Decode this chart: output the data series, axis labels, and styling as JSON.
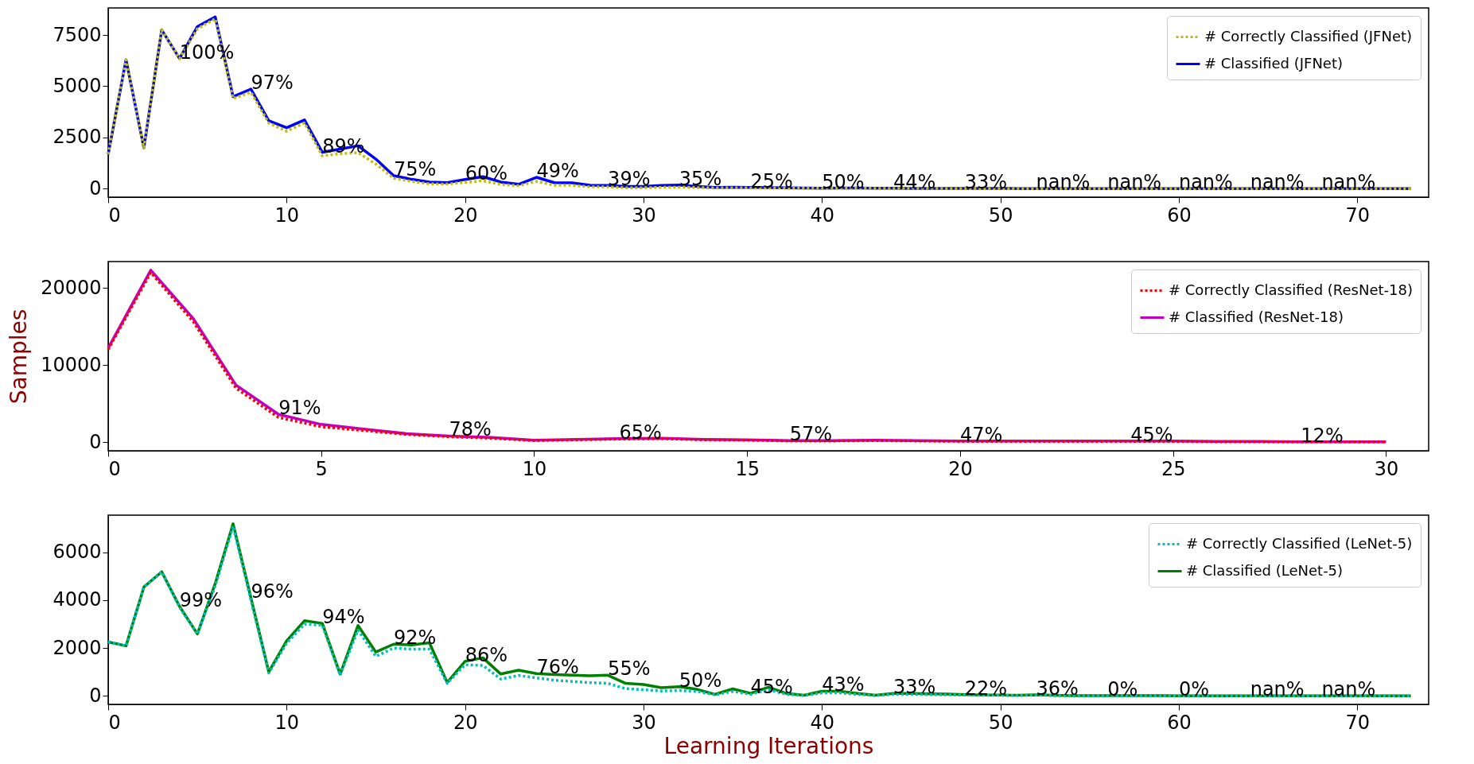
{
  "chart_data": [
    {
      "type": "line",
      "x": [
        0,
        1,
        2,
        3,
        4,
        5,
        6,
        7,
        8,
        9,
        10,
        11,
        12,
        13,
        14,
        15,
        16,
        17,
        18,
        19,
        20,
        21,
        22,
        23,
        24,
        25,
        26,
        27,
        28,
        29,
        30,
        31,
        32,
        33,
        34,
        35,
        36,
        37,
        38,
        39,
        40,
        41,
        42,
        43,
        44,
        45,
        46,
        47,
        48,
        49,
        50,
        51,
        52,
        53,
        54,
        55,
        56,
        57,
        58,
        59,
        60,
        61,
        62,
        63,
        64,
        65,
        66,
        67,
        68,
        69,
        70,
        71,
        72,
        73
      ],
      "series": [
        {
          "name": "# Correctly Classified (JFNet)",
          "color": "#bfbf00",
          "line_style": "dotted",
          "values": [
            1670,
            6290,
            1990,
            7750,
            6350,
            7800,
            8300,
            4400,
            4700,
            3200,
            2800,
            3200,
            1600,
            1700,
            1750,
            1200,
            500,
            350,
            230,
            220,
            300,
            380,
            200,
            140,
            350,
            160,
            160,
            80,
            80,
            40,
            40,
            60,
            70,
            50,
            30,
            40,
            30,
            30,
            20,
            20,
            10,
            20,
            20,
            10,
            10,
            10,
            10,
            0,
            0,
            0,
            0,
            0,
            0,
            0,
            0,
            0,
            0,
            0,
            0,
            0,
            0,
            0,
            0,
            0,
            0,
            0,
            0,
            0,
            0,
            0,
            0,
            0,
            0,
            0
          ]
        },
        {
          "name": "# Classified (JFNet)",
          "color": "#0000ff",
          "line_style": "solid",
          "values": [
            1670,
            6290,
            1990,
            7750,
            6350,
            7910,
            8380,
            4490,
            4860,
            3310,
            2970,
            3350,
            1770,
            1930,
            2090,
            1440,
            630,
            450,
            320,
            290,
            440,
            580,
            320,
            210,
            550,
            290,
            280,
            160,
            150,
            100,
            100,
            150,
            170,
            100,
            60,
            70,
            60,
            50,
            40,
            30,
            20,
            30,
            30,
            20,
            20,
            10,
            10,
            10,
            10,
            10,
            10,
            0,
            0,
            0,
            0,
            0,
            0,
            0,
            0,
            0,
            0,
            0,
            0,
            0,
            0,
            0,
            0,
            0,
            0,
            0,
            0,
            0,
            0,
            0
          ]
        }
      ],
      "xlim": [
        0,
        74
      ],
      "xticks": [
        0,
        10,
        20,
        30,
        40,
        50,
        60,
        70
      ],
      "ylim": [
        -420,
        8820
      ],
      "yticks": [
        0,
        2500,
        5000,
        7500
      ],
      "legend": "top right",
      "annotations": [
        {
          "text": "100%",
          "x": 4,
          "y": 6350
        },
        {
          "text": "97%",
          "x": 8,
          "y": 4860
        },
        {
          "text": "89%",
          "x": 12,
          "y": 1770
        },
        {
          "text": "75%",
          "x": 16,
          "y": 630
        },
        {
          "text": "60%",
          "x": 20,
          "y": 440
        },
        {
          "text": "49%",
          "x": 24,
          "y": 550
        },
        {
          "text": "39%",
          "x": 28,
          "y": 150
        },
        {
          "text": "35%",
          "x": 32,
          "y": 170
        },
        {
          "text": "25%",
          "x": 36,
          "y": 60
        },
        {
          "text": "50%",
          "x": 40,
          "y": 20
        },
        {
          "text": "44%",
          "x": 44,
          "y": 20
        },
        {
          "text": "33%",
          "x": 48,
          "y": 10
        },
        {
          "text": "nan%",
          "x": 52,
          "y": 0
        },
        {
          "text": "nan%",
          "x": 56,
          "y": 0
        },
        {
          "text": "nan%",
          "x": 60,
          "y": 0
        },
        {
          "text": "nan%",
          "x": 64,
          "y": 0
        },
        {
          "text": "nan%",
          "x": 68,
          "y": 0
        }
      ]
    },
    {
      "type": "line",
      "ylabel": "Samples",
      "x": [
        0,
        1,
        2,
        3,
        4,
        5,
        6,
        7,
        8,
        9,
        10,
        11,
        12,
        13,
        14,
        15,
        16,
        17,
        18,
        19,
        20,
        21,
        22,
        23,
        24,
        25,
        26,
        27,
        28,
        29,
        30
      ],
      "series": [
        {
          "name": "# Correctly Classified (ResNet-18)",
          "color": "#ff0000",
          "line_style": "dotted",
          "values": [
            12000,
            22000,
            15600,
            7000,
            3200,
            2000,
            1500,
            1000,
            700,
            500,
            200,
            300,
            400,
            450,
            300,
            250,
            150,
            150,
            200,
            150,
            100,
            100,
            100,
            100,
            100,
            100,
            50,
            50,
            50,
            50,
            50
          ]
        },
        {
          "name": "# Classified (ResNet-18)",
          "color": "#bf00bf",
          "line_style": "solid",
          "values": [
            12200,
            22300,
            16000,
            7400,
            3600,
            2300,
            1700,
            1100,
            800,
            600,
            250,
            350,
            450,
            500,
            350,
            300,
            200,
            200,
            250,
            200,
            150,
            150,
            150,
            150,
            150,
            150,
            100,
            100,
            50,
            50,
            50
          ]
        }
      ],
      "xlim": [
        0,
        31
      ],
      "xticks": [
        0,
        5,
        10,
        15,
        20,
        25,
        30
      ],
      "ylim": [
        -1120,
        23420
      ],
      "yticks": [
        0,
        10000,
        20000
      ],
      "legend": "top right",
      "annotations": [
        {
          "text": "91%",
          "x": 4,
          "y": 3600
        },
        {
          "text": "78%",
          "x": 8,
          "y": 800
        },
        {
          "text": "65%",
          "x": 12,
          "y": 450
        },
        {
          "text": "57%",
          "x": 16,
          "y": 200
        },
        {
          "text": "47%",
          "x": 20,
          "y": 150
        },
        {
          "text": "45%",
          "x": 24,
          "y": 150
        },
        {
          "text": "12%",
          "x": 28,
          "y": 50
        }
      ]
    },
    {
      "type": "line",
      "xlabel": "Learning Iterations",
      "x": [
        0,
        1,
        2,
        3,
        4,
        5,
        6,
        7,
        8,
        9,
        10,
        11,
        12,
        13,
        14,
        15,
        16,
        17,
        18,
        19,
        20,
        21,
        22,
        23,
        24,
        25,
        26,
        27,
        28,
        29,
        30,
        31,
        32,
        33,
        34,
        35,
        36,
        37,
        38,
        39,
        40,
        41,
        42,
        43,
        44,
        45,
        46,
        47,
        48,
        49,
        50,
        51,
        52,
        53,
        54,
        55,
        56,
        57,
        58,
        59,
        60,
        61,
        62,
        63,
        64,
        65,
        66,
        67,
        68,
        69,
        70,
        71,
        72,
        73
      ],
      "series": [
        {
          "name": "# Correctly Classified (LeNet-5)",
          "color": "#00bfbf",
          "line_style": "dotted",
          "values": [
            2250,
            2090,
            4550,
            5190,
            3700,
            2580,
            4600,
            7100,
            4000,
            950,
            2200,
            3000,
            2950,
            860,
            2750,
            1650,
            2000,
            1950,
            1950,
            520,
            1300,
            1270,
            700,
            850,
            750,
            650,
            600,
            550,
            520,
            300,
            250,
            200,
            220,
            180,
            40,
            180,
            60,
            250,
            60,
            10,
            120,
            120,
            60,
            10,
            60,
            60,
            50,
            40,
            30,
            20,
            20,
            10,
            30,
            10,
            10,
            0,
            0,
            0,
            0,
            0,
            0,
            0,
            0,
            0,
            0,
            0,
            0,
            0,
            0,
            0,
            0,
            0,
            0,
            0
          ]
        },
        {
          "name": "# Classified (LeNet-5)",
          "color": "#008000",
          "line_style": "solid",
          "values": [
            2250,
            2090,
            4550,
            5190,
            3740,
            2590,
            4700,
            7200,
            4100,
            1000,
            2300,
            3140,
            3030,
            910,
            2940,
            1830,
            2160,
            2130,
            2220,
            560,
            1440,
            1590,
            910,
            1070,
            930,
            890,
            860,
            840,
            860,
            520,
            470,
            340,
            380,
            270,
            60,
            290,
            100,
            360,
            100,
            20,
            190,
            190,
            100,
            20,
            100,
            100,
            80,
            70,
            50,
            30,
            30,
            20,
            40,
            20,
            10,
            10,
            10,
            10,
            10,
            10,
            0,
            0,
            0,
            0,
            0,
            0,
            0,
            0,
            0,
            0,
            0,
            0,
            0,
            0
          ]
        }
      ],
      "xlim": [
        0,
        74
      ],
      "xticks": [
        0,
        10,
        20,
        30,
        40,
        50,
        60,
        70
      ],
      "ylim": [
        -360,
        7560
      ],
      "yticks": [
        0,
        2000,
        4000,
        6000
      ],
      "legend": "top right",
      "annotations": [
        {
          "text": "99%",
          "x": 4,
          "y": 3740
        },
        {
          "text": "96%",
          "x": 8,
          "y": 4100
        },
        {
          "text": "94%",
          "x": 12,
          "y": 3030
        },
        {
          "text": "92%",
          "x": 16,
          "y": 2160
        },
        {
          "text": "86%",
          "x": 20,
          "y": 1440
        },
        {
          "text": "76%",
          "x": 24,
          "y": 930
        },
        {
          "text": "55%",
          "x": 28,
          "y": 860
        },
        {
          "text": "50%",
          "x": 32,
          "y": 380
        },
        {
          "text": "45%",
          "x": 36,
          "y": 100
        },
        {
          "text": "43%",
          "x": 40,
          "y": 190
        },
        {
          "text": "33%",
          "x": 44,
          "y": 100
        },
        {
          "text": "22%",
          "x": 48,
          "y": 50
        },
        {
          "text": "36%",
          "x": 52,
          "y": 40
        },
        {
          "text": "0%",
          "x": 56,
          "y": 10
        },
        {
          "text": "0%",
          "x": 60,
          "y": 0
        },
        {
          "text": "nan%",
          "x": 64,
          "y": 0
        },
        {
          "text": "nan%",
          "x": 68,
          "y": 0
        }
      ]
    }
  ]
}
